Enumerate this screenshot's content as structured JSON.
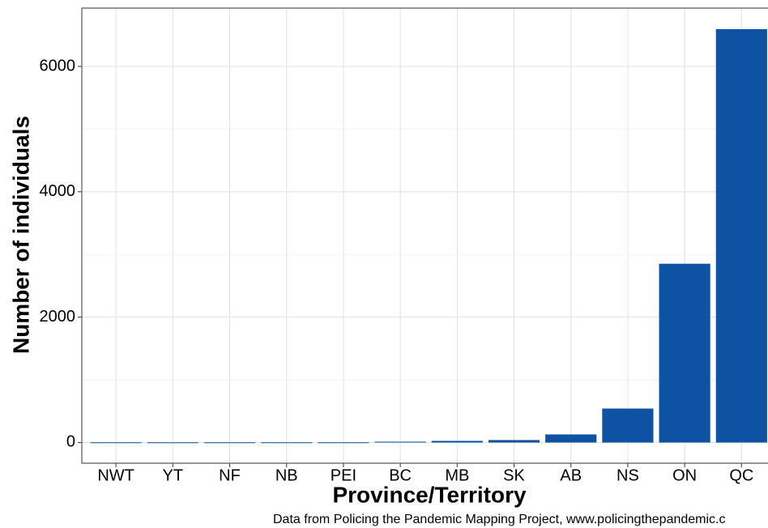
{
  "chart_data": {
    "type": "bar",
    "categories": [
      "NWT",
      "YT",
      "NF",
      "NB",
      "PEI",
      "BC",
      "MB",
      "SK",
      "AB",
      "NS",
      "ON",
      "QC"
    ],
    "values": [
      3,
      3,
      3,
      3,
      3,
      13,
      26,
      39,
      129,
      542,
      2852,
      6594
    ],
    "color": "#0d52a3",
    "ylim": [
      -330,
      6930
    ],
    "yticks": [
      0,
      2000,
      4000,
      6000
    ],
    "yminorticks": [
      1000,
      3000,
      5000
    ],
    "grid": true,
    "xlabel": "Province/Territory",
    "ylabel": "Number of individuals",
    "caption": "Data from Policing the Pandemic Mapping Project, www.policingthepandemic.c"
  }
}
